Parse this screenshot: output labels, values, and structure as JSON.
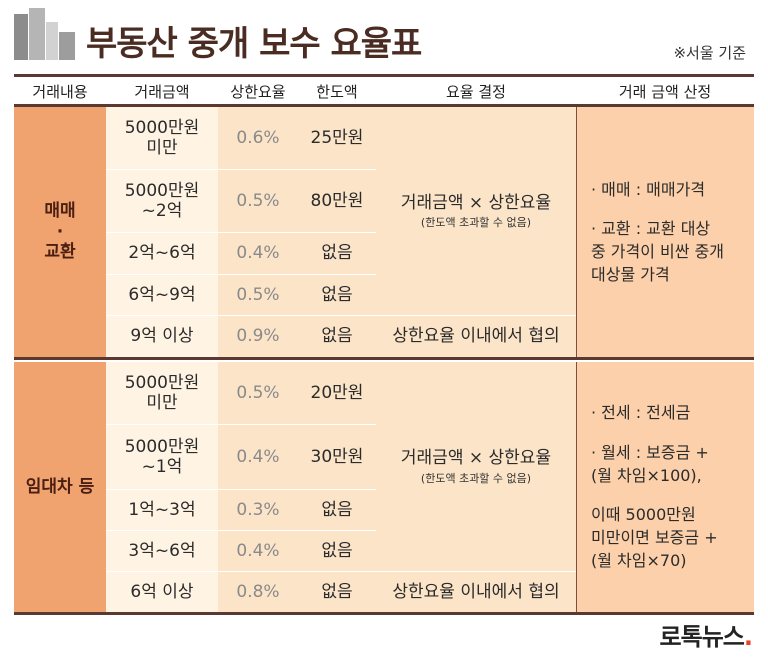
{
  "header": {
    "title": "부동산 중개 보수 요율표",
    "note": "※서울 기준"
  },
  "columns": [
    "거래내용",
    "거래금액",
    "상한요율",
    "한도액",
    "요율 결정",
    "거래 금액 산정"
  ],
  "sections": [
    {
      "category_lines": [
        "매매",
        "·",
        "교환"
      ],
      "rows": [
        {
          "amount": "5000만원\n미만",
          "rate": "0.6%",
          "limit": "25만원"
        },
        {
          "amount": "5000만원\n~2억",
          "rate": "0.5%",
          "limit": "80만원"
        },
        {
          "amount": "2억~6억",
          "rate": "0.4%",
          "limit": "없음"
        },
        {
          "amount": "6억~9억",
          "rate": "0.5%",
          "limit": "없음"
        },
        {
          "amount": "9억 이상",
          "rate": "0.9%",
          "limit": "없음"
        }
      ],
      "decision_main": "거래금액 × 상한요율",
      "decision_sub": "(한도액 초과할 수 없음)",
      "decision_last": "상한요율 이내에서 협의",
      "basis": [
        "· 매매 : 매매가격",
        "",
        "· 교환 : 교환 대상",
        "중 가격이 비싼 중개",
        "대상물 가격"
      ]
    },
    {
      "category_lines": [
        "임대차 등"
      ],
      "rows": [
        {
          "amount": "5000만원\n미만",
          "rate": "0.5%",
          "limit": "20만원"
        },
        {
          "amount": "5000만원\n~1억",
          "rate": "0.4%",
          "limit": "30만원"
        },
        {
          "amount": "1억~3억",
          "rate": "0.3%",
          "limit": "없음"
        },
        {
          "amount": "3억~6억",
          "rate": "0.4%",
          "limit": "없음"
        },
        {
          "amount": "6억 이상",
          "rate": "0.8%",
          "limit": "없음"
        }
      ],
      "decision_main": "거래금액 × 상한요율",
      "decision_sub": "(한도액 초과할 수 없음)",
      "decision_last": "상한요율 이내에서 협의",
      "basis": [
        "· 전세 : 전세금",
        "",
        "· 월세 : 보증금 +",
        "(월 차임×100),",
        "",
        "이때 5000만원",
        "미만이면 보증금 +",
        "(월 차임×70)"
      ]
    }
  ],
  "footer": {
    "brand": "로톡뉴스",
    "brand_dot": "."
  },
  "colors": {
    "category_bg": "#f0a36e",
    "amount_bg": "#fff3e3",
    "cell_bg": "#fbe4c8",
    "basis_bg": "#fbd0aa",
    "title": "#4a2c22",
    "rule": "#5a3a30",
    "brand_dot": "#e8442a"
  }
}
